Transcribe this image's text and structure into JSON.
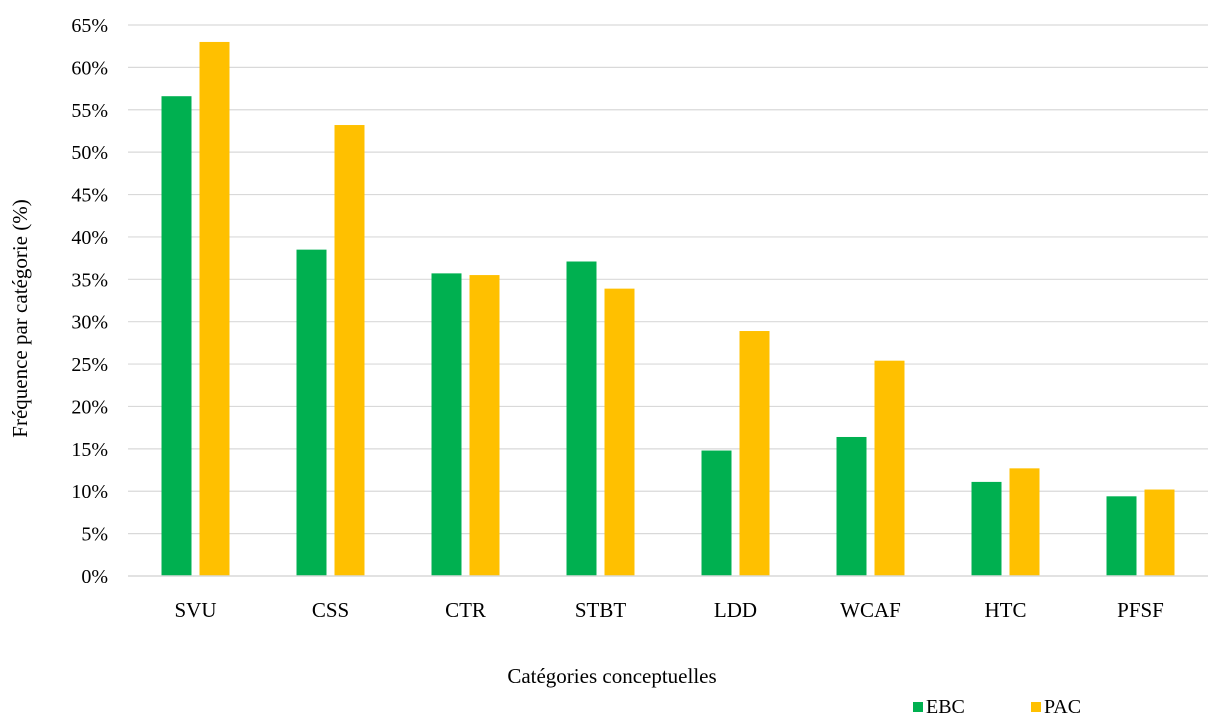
{
  "chart_data": {
    "type": "bar",
    "title": "",
    "xlabel": "Catégories conceptuelles",
    "ylabel": "Fréquence par catégorie (%)",
    "categories": [
      "SVU",
      "CSS",
      "CTR",
      "STBT",
      "LDD",
      "WCAF",
      "HTC",
      "PFSF"
    ],
    "series": [
      {
        "name": "EBC",
        "color": "#00b050",
        "values": [
          56.6,
          38.5,
          35.7,
          37.1,
          14.8,
          16.4,
          11.1,
          9.4
        ]
      },
      {
        "name": "PAC",
        "color": "#ffc000",
        "values": [
          63.0,
          53.2,
          35.5,
          33.9,
          28.9,
          25.4,
          12.7,
          10.2
        ]
      }
    ],
    "ylim": [
      0,
      65
    ],
    "y_ticks": [
      "0%",
      "5%",
      "10%",
      "15%",
      "20%",
      "25%",
      "30%",
      "35%",
      "40%",
      "45%",
      "50%",
      "55%",
      "60%",
      "65%"
    ],
    "grid": true,
    "legend_position": "bottom-right"
  }
}
